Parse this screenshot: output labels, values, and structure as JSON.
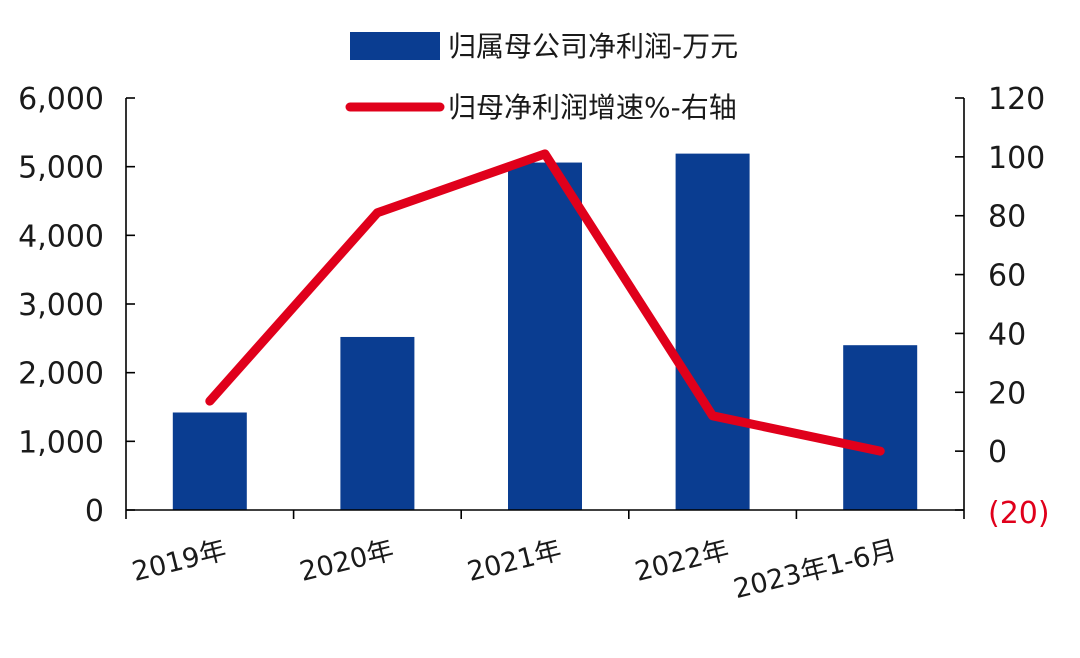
{
  "chart_data": {
    "type": "bar",
    "categories": [
      "2019年",
      "2020年",
      "2021年",
      "2022年",
      "2023年1-6月"
    ],
    "series": [
      {
        "name": "归属母公司净利润-万元",
        "type": "bar",
        "axis": "left",
        "color": "#0a3d91",
        "values": [
          1420,
          2520,
          5060,
          5190,
          2400
        ]
      },
      {
        "name": "归母净利润增速%-右轴",
        "type": "line",
        "axis": "right",
        "color": "#e0001b",
        "values": [
          17,
          81,
          101,
          12,
          0
        ]
      }
    ],
    "left_axis": {
      "ylim": [
        0,
        6000
      ],
      "ticks": [
        0,
        1000,
        2000,
        3000,
        4000,
        5000,
        6000
      ],
      "tick_labels": [
        "0",
        "1,000",
        "2,000",
        "3,000",
        "4,000",
        "5,000",
        "6,000"
      ]
    },
    "right_axis": {
      "ylim": [
        -20,
        120
      ],
      "ticks": [
        -20,
        0,
        20,
        40,
        60,
        80,
        100,
        120
      ],
      "tick_labels": [
        "(20)",
        "0",
        "20",
        "40",
        "60",
        "80",
        "100",
        "120"
      ],
      "negative_label_color": "#e0001b"
    },
    "grid": false,
    "legend_position": "top"
  }
}
